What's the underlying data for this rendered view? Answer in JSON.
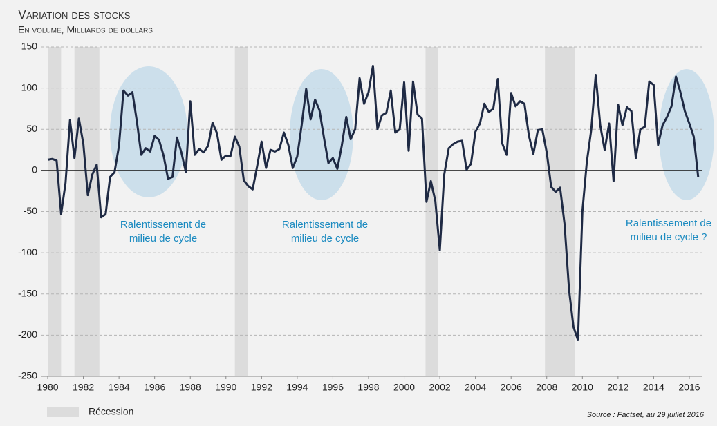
{
  "chart_data": {
    "type": "line",
    "title": "Variation des stocks",
    "subtitle": "En volume, Milliards de dollars",
    "source": "Source : Factset, au 29 juillet 2016",
    "x": [
      1980,
      1980.25,
      1980.5,
      1980.75,
      1981,
      1981.25,
      1981.5,
      1981.75,
      1982,
      1982.25,
      1982.5,
      1982.75,
      1983,
      1983.25,
      1983.5,
      1983.75,
      1984,
      1984.25,
      1984.5,
      1984.75,
      1985,
      1985.25,
      1985.5,
      1985.75,
      1986,
      1986.25,
      1986.5,
      1986.75,
      1987,
      1987.25,
      1987.5,
      1987.75,
      1988,
      1988.25,
      1988.5,
      1988.75,
      1989,
      1989.25,
      1989.5,
      1989.75,
      1990,
      1990.25,
      1990.5,
      1990.75,
      1991,
      1991.25,
      1991.5,
      1991.75,
      1992,
      1992.25,
      1992.5,
      1992.75,
      1993,
      1993.25,
      1993.5,
      1993.75,
      1994,
      1994.25,
      1994.5,
      1994.75,
      1995,
      1995.25,
      1995.5,
      1995.75,
      1996,
      1996.25,
      1996.5,
      1996.75,
      1997,
      1997.25,
      1997.5,
      1997.75,
      1998,
      1998.25,
      1998.5,
      1998.75,
      1999,
      1999.25,
      1999.5,
      1999.75,
      2000,
      2000.25,
      2000.5,
      2000.75,
      2001,
      2001.25,
      2001.5,
      2001.75,
      2002,
      2002.25,
      2002.5,
      2002.75,
      2003,
      2003.25,
      2003.5,
      2003.75,
      2004,
      2004.25,
      2004.5,
      2004.75,
      2005,
      2005.25,
      2005.5,
      2005.75,
      2006,
      2006.25,
      2006.5,
      2006.75,
      2007,
      2007.25,
      2007.5,
      2007.75,
      2008,
      2008.25,
      2008.5,
      2008.75,
      2009,
      2009.25,
      2009.5,
      2009.75,
      2010,
      2010.25,
      2010.5,
      2010.75,
      2011,
      2011.25,
      2011.5,
      2011.75,
      2012,
      2012.25,
      2012.5,
      2012.75,
      2013,
      2013.25,
      2013.5,
      2013.75,
      2014,
      2014.25,
      2014.5,
      2014.75,
      2015,
      2015.25,
      2015.5,
      2015.75,
      2016,
      2016.25,
      2016.5
    ],
    "series": [
      {
        "color": "#1f2a44",
        "values": [
          13,
          14,
          12,
          -53,
          -15,
          61,
          15,
          63,
          32,
          -30,
          -5,
          7,
          -57,
          -53,
          -8,
          -2,
          30,
          97,
          91,
          95,
          60,
          19,
          27,
          23,
          42,
          37,
          18,
          -10,
          -8,
          40,
          22,
          -2,
          84,
          19,
          26,
          22,
          30,
          58,
          45,
          13,
          18,
          17,
          41,
          29,
          -12,
          -19,
          -23,
          5,
          35,
          3,
          25,
          23,
          26,
          46,
          31,
          3,
          17,
          55,
          99,
          62,
          86,
          73,
          40,
          9,
          15,
          2,
          30,
          65,
          38,
          50,
          112,
          81,
          95,
          127,
          50,
          67,
          70,
          97,
          46,
          50,
          107,
          24,
          108,
          68,
          63,
          -38,
          -13,
          -37,
          -97,
          -5,
          27,
          32,
          35,
          36,
          1,
          8,
          47,
          57,
          81,
          71,
          75,
          111,
          33,
          19,
          94,
          78,
          84,
          81,
          42,
          20,
          49,
          50,
          22,
          -20,
          -26,
          -21,
          -65,
          -145,
          -190,
          -206,
          -50,
          10,
          50,
          116,
          55,
          25,
          57,
          -13,
          80,
          55,
          77,
          72,
          15,
          50,
          53,
          108,
          104,
          31,
          55,
          65,
          78,
          114,
          95,
          72,
          57,
          41,
          -8
        ]
      }
    ],
    "recession": {
      "name": "Récession",
      "color": "#dcdcdc",
      "periods": [
        [
          1980,
          1980.75
        ],
        [
          1981.5,
          1982.9
        ],
        [
          1990.5,
          1991.25
        ],
        [
          2001.2,
          2001.9
        ],
        [
          2007.9,
          2009.6
        ]
      ]
    },
    "annotations": [
      {
        "lines": [
          "Ralentissement de",
          "milieu de cycle"
        ],
        "color": "#1a8ac0"
      },
      {
        "lines": [
          "Ralentissement de",
          "milieu de cycle"
        ],
        "color": "#1a8ac0"
      },
      {
        "lines": [
          "Ralentissement de",
          "milieu de cycle ?"
        ],
        "color": "#1a8ac0"
      }
    ],
    "xlim": [
      1979.65,
      2016.7
    ],
    "ylim": [
      -250,
      150
    ],
    "xticks": [
      1980,
      1982,
      1984,
      1986,
      1988,
      1990,
      1992,
      1994,
      1996,
      1998,
      2000,
      2002,
      2004,
      2006,
      2008,
      2010,
      2012,
      2014,
      2016
    ],
    "yticks": [
      -250,
      -200,
      -150,
      -100,
      -50,
      0,
      50,
      100,
      150
    ],
    "grid": true
  }
}
